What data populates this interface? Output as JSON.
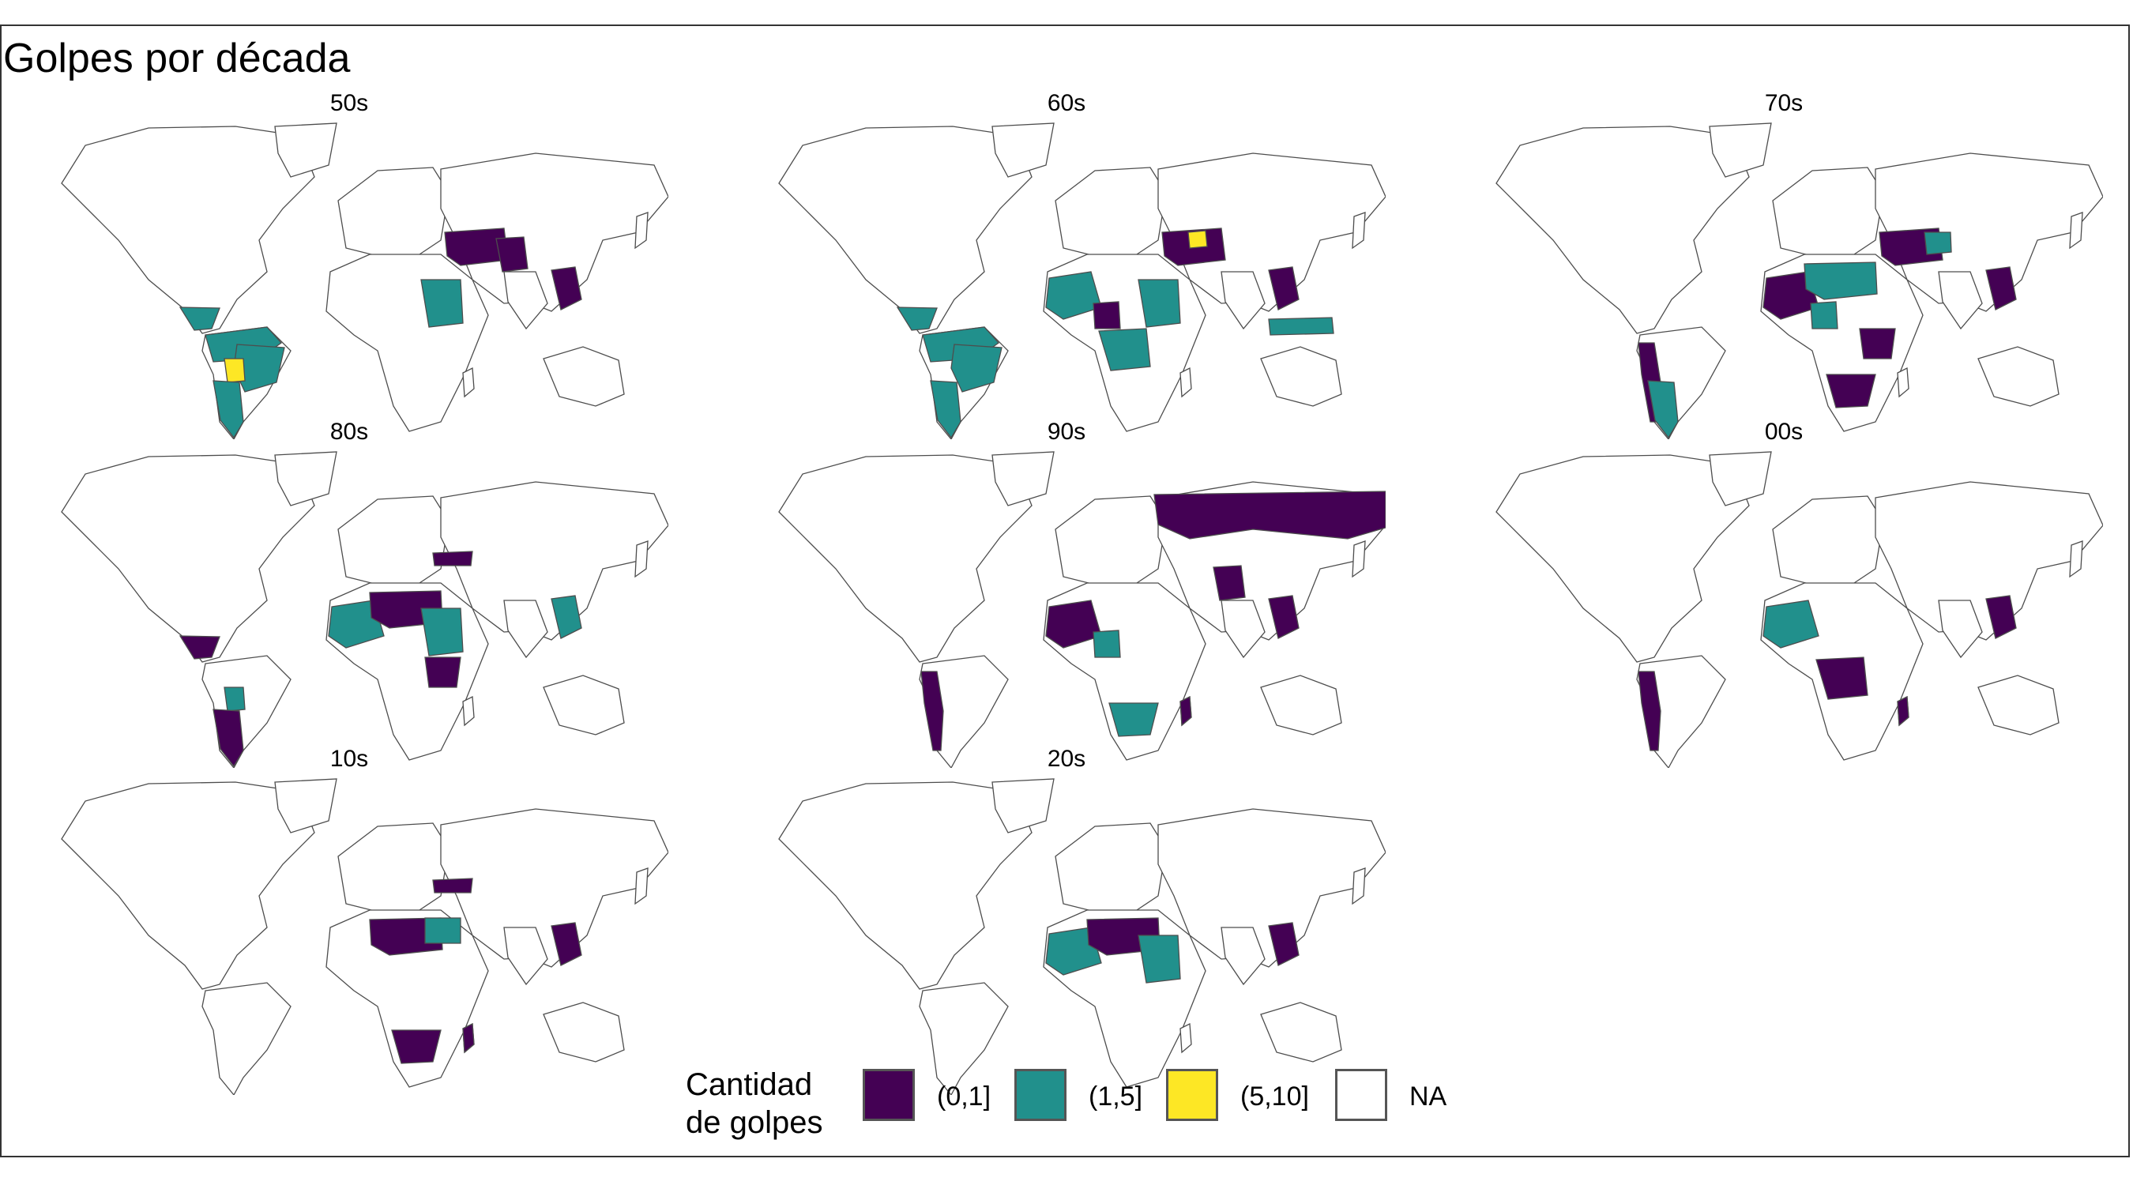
{
  "title": "Golpes por década",
  "colors": {
    "(0,1]": "#440154",
    "(1,5]": "#21908c",
    "(5,10]": "#fde725",
    "NA": "#ffffff"
  },
  "legend": {
    "title_line1": "Cantidad",
    "title_line2": "de golpes",
    "items": [
      {
        "label": "(0,1]",
        "color": "#440154"
      },
      {
        "label": "(1,5]",
        "color": "#21908c"
      },
      {
        "label": "(5,10]",
        "color": "#fde725"
      },
      {
        "label": "NA",
        "color": "#ffffff"
      }
    ]
  },
  "panels": [
    {
      "label": "50s",
      "regions": [
        {
          "region": "south-america-north",
          "bin": "(1,5]"
        },
        {
          "region": "brazil",
          "bin": "(1,5]"
        },
        {
          "region": "bolivia",
          "bin": "(5,10]"
        },
        {
          "region": "argentina",
          "bin": "(1,5]"
        },
        {
          "region": "central-america",
          "bin": "(1,5]"
        },
        {
          "region": "middle-east",
          "bin": "(0,1]"
        },
        {
          "region": "sudan",
          "bin": "(1,5]"
        },
        {
          "region": "pakistan",
          "bin": "(0,1]"
        },
        {
          "region": "indochina",
          "bin": "(0,1]"
        }
      ]
    },
    {
      "label": "60s",
      "regions": [
        {
          "region": "south-america-north",
          "bin": "(1,5]"
        },
        {
          "region": "brazil",
          "bin": "(1,5]"
        },
        {
          "region": "argentina",
          "bin": "(1,5]"
        },
        {
          "region": "central-america",
          "bin": "(1,5]"
        },
        {
          "region": "west-africa",
          "bin": "(1,5]"
        },
        {
          "region": "nigeria",
          "bin": "(0,1]"
        },
        {
          "region": "middle-east",
          "bin": "(0,1]"
        },
        {
          "region": "iraq",
          "bin": "(5,10]"
        },
        {
          "region": "sudan",
          "bin": "(1,5]"
        },
        {
          "region": "congo",
          "bin": "(1,5]"
        },
        {
          "region": "indonesia",
          "bin": "(1,5]"
        },
        {
          "region": "indochina",
          "bin": "(0,1]"
        }
      ]
    },
    {
      "label": "70s",
      "regions": [
        {
          "region": "andes",
          "bin": "(0,1]"
        },
        {
          "region": "argentina",
          "bin": "(1,5]"
        },
        {
          "region": "west-africa",
          "bin": "(0,1]"
        },
        {
          "region": "nigeria",
          "bin": "(1,5]"
        },
        {
          "region": "sahel",
          "bin": "(1,5]"
        },
        {
          "region": "middle-east",
          "bin": "(0,1]"
        },
        {
          "region": "afghanistan",
          "bin": "(1,5]"
        },
        {
          "region": "east-africa",
          "bin": "(0,1]"
        },
        {
          "region": "southern-africa",
          "bin": "(0,1]"
        },
        {
          "region": "indochina",
          "bin": "(0,1]"
        }
      ]
    },
    {
      "label": "80s",
      "regions": [
        {
          "region": "central-america",
          "bin": "(0,1]"
        },
        {
          "region": "bolivia",
          "bin": "(1,5]"
        },
        {
          "region": "argentina",
          "bin": "(0,1]"
        },
        {
          "region": "west-africa",
          "bin": "(1,5]"
        },
        {
          "region": "sahel",
          "bin": "(0,1]"
        },
        {
          "region": "sudan",
          "bin": "(1,5]"
        },
        {
          "region": "east-africa",
          "bin": "(0,1]"
        },
        {
          "region": "turkey",
          "bin": "(0,1]"
        },
        {
          "region": "indochina",
          "bin": "(1,5]"
        }
      ]
    },
    {
      "label": "90s",
      "regions": [
        {
          "region": "russia",
          "bin": "(0,1]"
        },
        {
          "region": "andes",
          "bin": "(0,1]"
        },
        {
          "region": "west-africa",
          "bin": "(0,1]"
        },
        {
          "region": "nigeria",
          "bin": "(1,5]"
        },
        {
          "region": "pakistan",
          "bin": "(0,1]"
        },
        {
          "region": "southern-africa",
          "bin": "(1,5]"
        },
        {
          "region": "madagascar",
          "bin": "(0,1]"
        },
        {
          "region": "indochina",
          "bin": "(0,1]"
        }
      ]
    },
    {
      "label": "00s",
      "regions": [
        {
          "region": "andes",
          "bin": "(0,1]"
        },
        {
          "region": "west-africa",
          "bin": "(1,5]"
        },
        {
          "region": "congo",
          "bin": "(0,1]"
        },
        {
          "region": "madagascar",
          "bin": "(0,1]"
        },
        {
          "region": "indochina",
          "bin": "(0,1]"
        }
      ]
    },
    {
      "label": "10s",
      "regions": [
        {
          "region": "sahel",
          "bin": "(0,1]"
        },
        {
          "region": "egypt",
          "bin": "(1,5]"
        },
        {
          "region": "turkey",
          "bin": "(0,1]"
        },
        {
          "region": "southern-africa",
          "bin": "(0,1]"
        },
        {
          "region": "madagascar",
          "bin": "(0,1]"
        },
        {
          "region": "indochina",
          "bin": "(0,1]"
        }
      ]
    },
    {
      "label": "20s",
      "regions": [
        {
          "region": "west-africa",
          "bin": "(1,5]"
        },
        {
          "region": "sahel",
          "bin": "(0,1]"
        },
        {
          "region": "sudan",
          "bin": "(1,5]"
        },
        {
          "region": "indochina",
          "bin": "(0,1]"
        }
      ]
    }
  ]
}
